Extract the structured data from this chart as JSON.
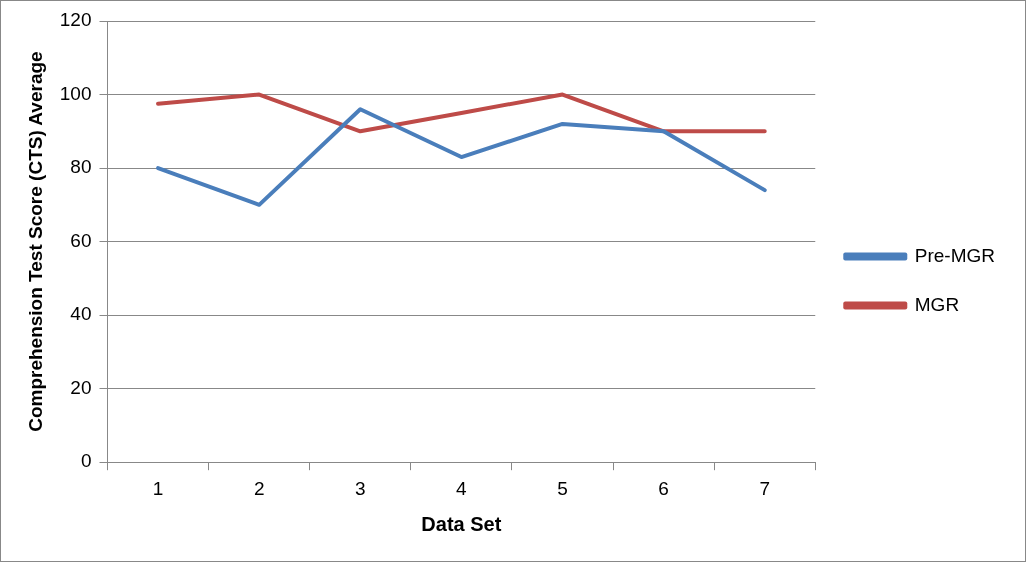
{
  "chart_data": {
    "type": "line",
    "xlabel": "Data Set",
    "ylabel": "Comprehension Test Score (CTS) Average",
    "categories": [
      "1",
      "2",
      "3",
      "4",
      "5",
      "6",
      "7"
    ],
    "series": [
      {
        "name": "Pre-MGR",
        "color": "#4a7ebb",
        "values": [
          80,
          70,
          96,
          83,
          92,
          90,
          74
        ]
      },
      {
        "name": "MGR",
        "color": "#be4b48",
        "values": [
          97.5,
          100,
          90,
          95,
          100,
          90,
          90
        ]
      }
    ],
    "ylim": [
      0,
      120
    ],
    "yticks": [
      0,
      20,
      40,
      60,
      80,
      100,
      120
    ],
    "grid": "y",
    "legend": "right",
    "marker": "none",
    "line_style": "solid"
  }
}
